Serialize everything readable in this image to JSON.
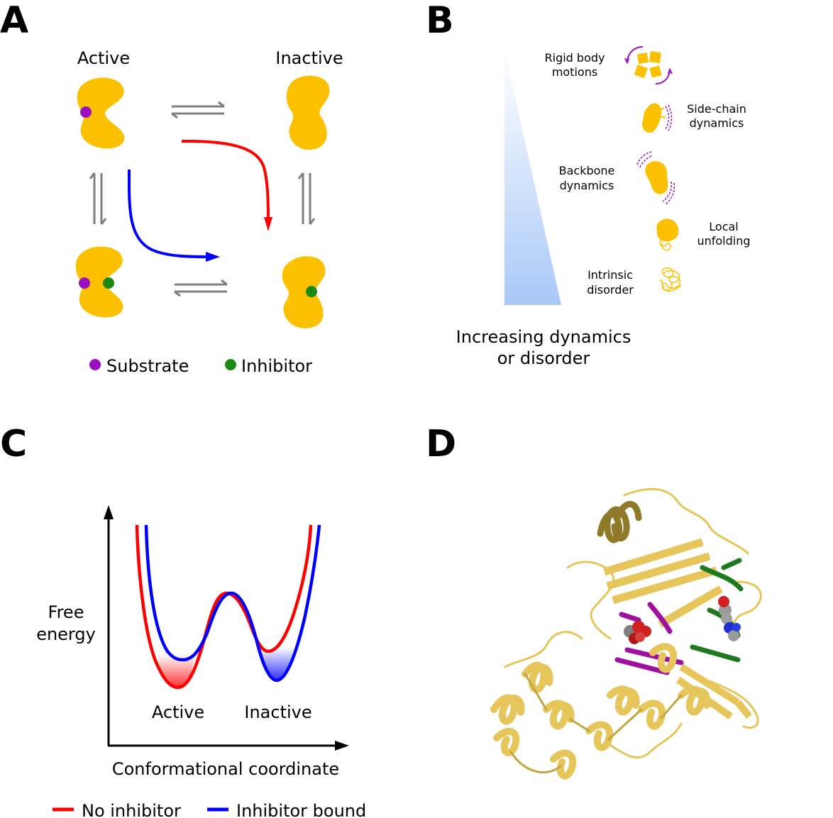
{
  "panels": {
    "a": {
      "letter": "A",
      "state_active": "Active",
      "state_inactive": "Inactive",
      "legend_substrate": "Substrate",
      "legend_inhibitor": "Inhibitor",
      "colors": {
        "protein": "#fbc100",
        "substrate": "#9b0fbf",
        "inhibitor": "#1b8a12",
        "equilibrium_arrow": "#7f7f7f",
        "path_red": "#ff0000",
        "path_blue": "#0000ff"
      }
    },
    "b": {
      "letter": "B",
      "axis_label_line1": "Increasing dynamics",
      "axis_label_line2": "or disorder",
      "items": [
        {
          "line1": "Rigid body",
          "line2": "motions"
        },
        {
          "line1": "Side-chain",
          "line2": "dynamics"
        },
        {
          "line1": "Backbone",
          "line2": "dynamics"
        },
        {
          "line1": "Local",
          "line2": "unfolding"
        },
        {
          "line1": "Intrinsic",
          "line2": "disorder"
        }
      ],
      "colors": {
        "gradient_top": "#ffffff",
        "gradient_bottom": "#a9c8f7",
        "motion": "#9b0fbf"
      }
    },
    "c": {
      "letter": "C",
      "ylabel_line1": "Free",
      "ylabel_line2": "energy",
      "xlabel": "Conformational coordinate",
      "well_active": "Active",
      "well_inactive": "Inactive",
      "legend": [
        {
          "label": "No inhibitor",
          "color": "#ff0000"
        },
        {
          "label": "Inhibitor bound",
          "color": "#0000ff"
        }
      ]
    },
    "d": {
      "letter": "D",
      "colors": {
        "cartoon": "#e6c65a",
        "cartoon_dark": "#b49a38",
        "green": "#1f7a1f",
        "magenta": "#a010a0",
        "sphere_red": "#d02020",
        "sphere_gray": "#909090",
        "sphere_blue": "#2030d0"
      }
    }
  }
}
